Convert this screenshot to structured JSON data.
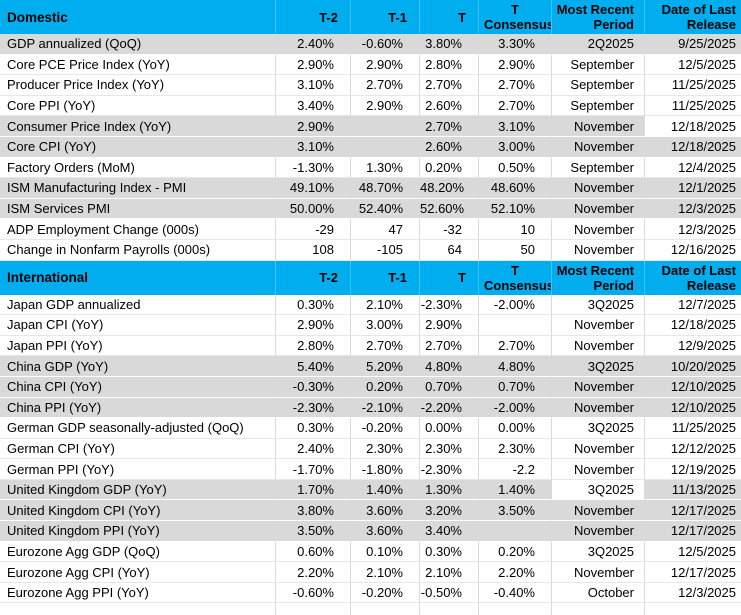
{
  "colors": {
    "header_bg": "#00AEEF",
    "header_text": "#000000",
    "row_gray_bg": "#D9D9D9",
    "row_white_bg": "#FFFFFF",
    "grid_border": "#D9D9D9",
    "white_row_divider": "#E7E7E7",
    "gray_row_divider": "#FFFFFF",
    "text": "#000000"
  },
  "columns": [
    "T-2",
    "T-1",
    "T",
    "T Consensus",
    "Most Recent Period",
    "Date of Last Release"
  ],
  "sections": [
    {
      "title": "Domestic",
      "rows": [
        {
          "label": "GDP annualized (QoQ)",
          "t2": "2.40%",
          "t1": "-0.60%",
          "t": "3.80%",
          "consensus": "3.30%",
          "period": "2Q2025",
          "date": "9/25/2025",
          "shade": "gray"
        },
        {
          "label": "Core PCE Price Index (YoY)",
          "t2": "2.90%",
          "t1": "2.90%",
          "t": "2.80%",
          "consensus": "2.90%",
          "period": "September",
          "date": "12/5/2025",
          "shade": "white"
        },
        {
          "label": "Producer Price Index (YoY)",
          "t2": "3.10%",
          "t1": "2.70%",
          "t": "2.70%",
          "consensus": "2.70%",
          "period": "September",
          "date": "11/25/2025",
          "shade": "white"
        },
        {
          "label": "Core PPI (YoY)",
          "t2": "3.40%",
          "t1": "2.90%",
          "t": "2.60%",
          "consensus": "2.70%",
          "period": "September",
          "date": "11/25/2025",
          "shade": "white"
        },
        {
          "label": "Consumer Price Index (YoY)",
          "t2": "2.90%",
          "t1": "",
          "t": "2.70%",
          "consensus": "3.10%",
          "period": "November",
          "date": "12/18/2025",
          "shade": "gray",
          "white_cells": [
            "date"
          ]
        },
        {
          "label": "Core CPI  (YoY)",
          "t2": "3.10%",
          "t1": "",
          "t": "2.60%",
          "consensus": "3.00%",
          "period": "November",
          "date": "12/18/2025",
          "shade": "gray"
        },
        {
          "label": "Factory Orders (MoM)",
          "t2": "-1.30%",
          "t1": "1.30%",
          "t": "0.20%",
          "consensus": "0.50%",
          "period": "September",
          "date": "12/4/2025",
          "shade": "white"
        },
        {
          "label": "ISM Manufacturing Index - PMI",
          "t2": "49.10%",
          "t1": "48.70%",
          "t": "48.20%",
          "consensus": "48.60%",
          "period": "November",
          "date": "12/1/2025",
          "shade": "gray"
        },
        {
          "label": "ISM Services PMI",
          "t2": "50.00%",
          "t1": "52.40%",
          "t": "52.60%",
          "consensus": "52.10%",
          "period": "November",
          "date": "12/3/2025",
          "shade": "gray"
        },
        {
          "label": "ADP Employment Change (000s)",
          "t2": "-29",
          "t1": "47",
          "t": "-32",
          "consensus": "10",
          "period": "November",
          "date": "12/3/2025",
          "shade": "white"
        },
        {
          "label": "Change in Nonfarm Payrolls (000s)",
          "t2": "108",
          "t1": "-105",
          "t": "64",
          "consensus": "50",
          "period": "November",
          "date": "12/16/2025",
          "shade": "white"
        }
      ]
    },
    {
      "title": "International",
      "rows": [
        {
          "label": "Japan GDP annualized",
          "t2": "0.30%",
          "t1": "2.10%",
          "t": "-2.30%",
          "consensus": "-2.00%",
          "period": "3Q2025",
          "date": "12/7/2025",
          "shade": "white"
        },
        {
          "label": "Japan CPI (YoY)",
          "t2": "2.90%",
          "t1": "3.00%",
          "t": "2.90%",
          "consensus": "",
          "period": "November",
          "date": "12/18/2025",
          "shade": "white"
        },
        {
          "label": "Japan PPI (YoY)",
          "t2": "2.80%",
          "t1": "2.70%",
          "t": "2.70%",
          "consensus": "2.70%",
          "period": "November",
          "date": "12/9/2025",
          "shade": "white"
        },
        {
          "label": "China GDP (YoY)",
          "t2": "5.40%",
          "t1": "5.20%",
          "t": "4.80%",
          "consensus": "4.80%",
          "period": "3Q2025",
          "date": "10/20/2025",
          "shade": "gray"
        },
        {
          "label": "China CPI (YoY)",
          "t2": "-0.30%",
          "t1": "0.20%",
          "t": "0.70%",
          "consensus": "0.70%",
          "period": "November",
          "date": "12/10/2025",
          "shade": "gray"
        },
        {
          "label": "China PPI (YoY)",
          "t2": "-2.30%",
          "t1": "-2.10%",
          "t": "-2.20%",
          "consensus": "-2.00%",
          "period": "November",
          "date": "12/10/2025",
          "shade": "gray"
        },
        {
          "label": "German GDP seasonally-adjusted (QoQ)",
          "t2": "0.30%",
          "t1": "-0.20%",
          "t": "0.00%",
          "consensus": "0.00%",
          "period": "3Q2025",
          "date": "11/25/2025",
          "shade": "white"
        },
        {
          "label": "German CPI (YoY)",
          "t2": "2.40%",
          "t1": "2.30%",
          "t": "2.30%",
          "consensus": "2.30%",
          "period": "November",
          "date": "12/12/2025",
          "shade": "white"
        },
        {
          "label": "German PPI (YoY)",
          "t2": "-1.70%",
          "t1": "-1.80%",
          "t": "-2.30%",
          "consensus": "-2.2",
          "period": "November",
          "date": "12/19/2025",
          "shade": "white"
        },
        {
          "label": "United Kingdom GDP (YoY)",
          "t2": "1.70%",
          "t1": "1.40%",
          "t": "1.30%",
          "consensus": "1.40%",
          "period": "3Q2025",
          "date": "11/13/2025",
          "shade": "gray",
          "white_cells": [
            "period"
          ]
        },
        {
          "label": "United Kingdom CPI (YoY)",
          "t2": "3.80%",
          "t1": "3.60%",
          "t": "3.20%",
          "consensus": "3.50%",
          "period": "November",
          "date": "12/17/2025",
          "shade": "gray"
        },
        {
          "label": "United Kingdom  PPI (YoY)",
          "t2": "3.50%",
          "t1": "3.60%",
          "t": "3.40%",
          "consensus": "",
          "period": "November",
          "date": "12/17/2025",
          "shade": "gray"
        },
        {
          "label": "Eurozone Agg GDP (QoQ)",
          "t2": "0.60%",
          "t1": "0.10%",
          "t": "0.30%",
          "consensus": "0.20%",
          "period": "3Q2025",
          "date": "12/5/2025",
          "shade": "white"
        },
        {
          "label": "Eurozone Agg CPI (YoY)",
          "t2": "2.20%",
          "t1": "2.10%",
          "t": "2.10%",
          "consensus": "2.20%",
          "period": "November",
          "date": "12/17/2025",
          "shade": "white"
        },
        {
          "label": "Eurozone Agg PPI (YoY)",
          "t2": "-0.60%",
          "t1": "-0.20%",
          "t": "-0.50%",
          "consensus": "-0.40%",
          "period": "October",
          "date": "12/3/2025",
          "shade": "white"
        }
      ]
    }
  ]
}
